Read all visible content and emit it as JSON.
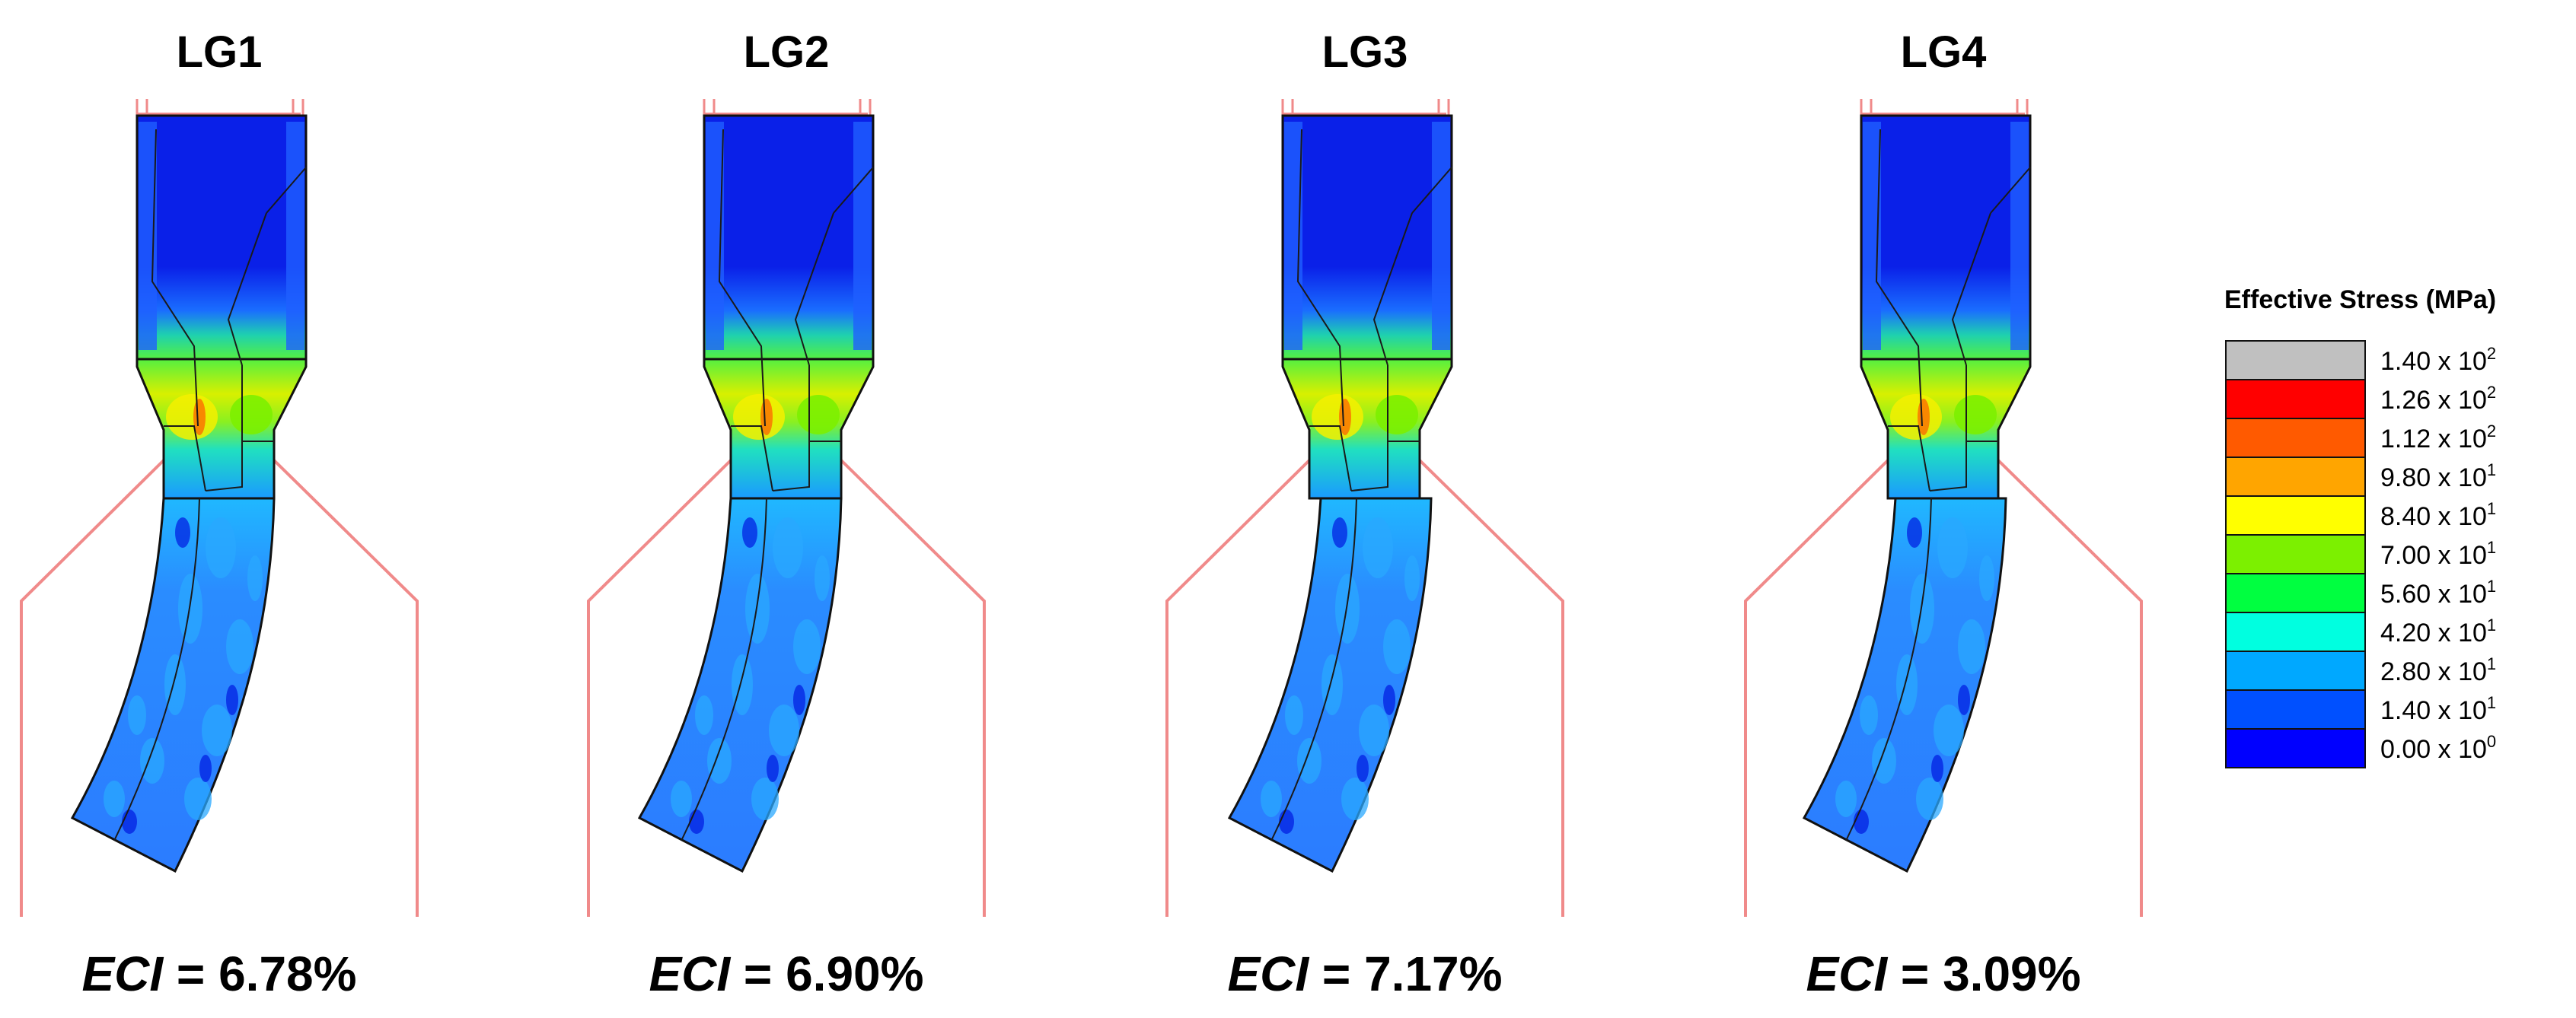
{
  "panels": [
    {
      "title": "LG1",
      "eci_label": "ECI",
      "eci_value": " = 6.78%"
    },
    {
      "title": "LG2",
      "eci_label": "ECI",
      "eci_value": " = 6.90%"
    },
    {
      "title": "LG3",
      "eci_label": "ECI",
      "eci_value": " = 7.17%"
    },
    {
      "title": "LG4",
      "eci_label": "ECI",
      "eci_value": " = 3.09%"
    }
  ],
  "legend": {
    "title": "Effective Stress (MPa)",
    "entries": [
      {
        "mantissa": "1.40 x 10",
        "exponent": "2",
        "color": "#c0c0c0"
      },
      {
        "mantissa": "1.26 x 10",
        "exponent": "2",
        "color": "#ff0000"
      },
      {
        "mantissa": "1.12 x 10",
        "exponent": "2",
        "color": "#ff5a00"
      },
      {
        "mantissa": "9.80 x 10",
        "exponent": "1",
        "color": "#ffa500"
      },
      {
        "mantissa": "8.40 x 10",
        "exponent": "1",
        "color": "#ffff00"
      },
      {
        "mantissa": "7.00 x 10",
        "exponent": "1",
        "color": "#7cf000"
      },
      {
        "mantissa": "5.60 x 10",
        "exponent": "1",
        "color": "#00ff40"
      },
      {
        "mantissa": "4.20 x 10",
        "exponent": "1",
        "color": "#00ffe0"
      },
      {
        "mantissa": "2.80 x 10",
        "exponent": "1",
        "color": "#00a8ff"
      },
      {
        "mantissa": "1.40 x 10",
        "exponent": "1",
        "color": "#0050ff"
      },
      {
        "mantissa": "0.00 x 10",
        "exponent": "0",
        "color": "#0000ff"
      }
    ]
  },
  "colors": {
    "die_outline": "#f08a8a",
    "billet_dark": "#0018e0",
    "billet_mid": "#1f5fff",
    "billet_light": "#2aa8ff",
    "hot_green": "#7cf000",
    "hot_yellow": "#f4f000",
    "grain_lines": "#1a1a1a"
  }
}
